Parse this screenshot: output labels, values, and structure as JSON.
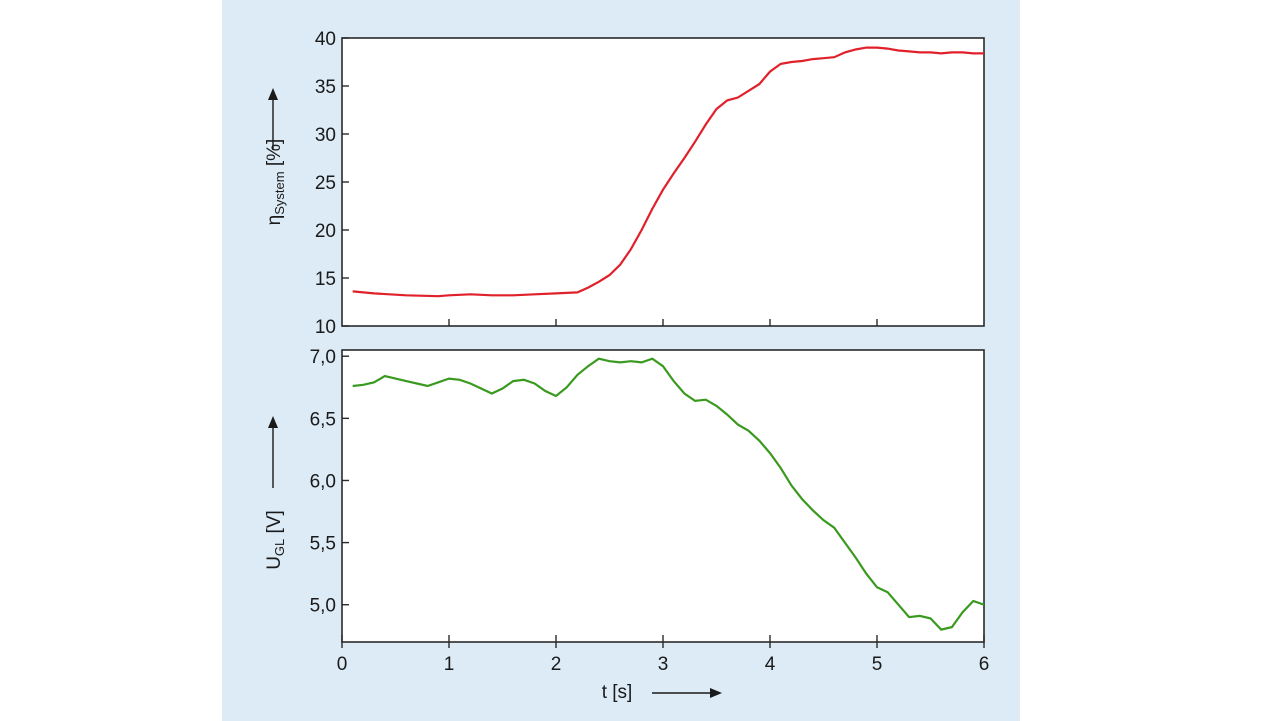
{
  "chart_data": [
    {
      "type": "line",
      "ylabel_main": "η",
      "ylabel_sub": "System",
      "ylabel_unit": " [%]",
      "ylim": [
        10,
        40
      ],
      "xlim": [
        0,
        6
      ],
      "yticks": [
        10,
        15,
        20,
        25,
        30,
        35,
        40
      ],
      "ytick_labels": [
        "10",
        "15",
        "20",
        "25",
        "30",
        "35",
        "40"
      ],
      "xticks": [
        1,
        2,
        3,
        4,
        5
      ],
      "grid": false,
      "color": "#e0202a",
      "series": [
        {
          "x": [
            0.1,
            0.3,
            0.6,
            0.9,
            1.0,
            1.2,
            1.4,
            1.6,
            1.8,
            2.0,
            2.2,
            2.3,
            2.4,
            2.5,
            2.6,
            2.7,
            2.8,
            2.9,
            3.0,
            3.1,
            3.2,
            3.3,
            3.4,
            3.5,
            3.6,
            3.7,
            3.8,
            3.9,
            4.0,
            4.1,
            4.2,
            4.3,
            4.4,
            4.5,
            4.6,
            4.7,
            4.8,
            4.9,
            5.0,
            5.1,
            5.2,
            5.3,
            5.4,
            5.5,
            5.6,
            5.7,
            5.8,
            5.9,
            6.0
          ],
          "values": [
            13.6,
            13.4,
            13.2,
            13.1,
            13.2,
            13.3,
            13.2,
            13.2,
            13.3,
            13.4,
            13.5,
            14.0,
            14.6,
            15.3,
            16.4,
            18.0,
            20.0,
            22.2,
            24.2,
            25.9,
            27.5,
            29.2,
            31.0,
            32.6,
            33.5,
            33.8,
            34.5,
            35.2,
            36.5,
            37.3,
            37.5,
            37.6,
            37.8,
            37.9,
            38.0,
            38.5,
            38.8,
            39.0,
            39.0,
            38.9,
            38.7,
            38.6,
            38.5,
            38.5,
            38.4,
            38.5,
            38.5,
            38.4,
            38.4
          ]
        }
      ]
    },
    {
      "type": "line",
      "ylabel_main": "U",
      "ylabel_sub": "GL",
      "ylabel_unit": " [V]",
      "xlabel": "t [s]",
      "ylim": [
        4.7,
        7.05
      ],
      "xlim": [
        0,
        6
      ],
      "yticks": [
        5.0,
        5.5,
        6.0,
        6.5,
        7.0
      ],
      "ytick_labels": [
        "5,0",
        "5,5",
        "6,0",
        "6,5",
        "7,0"
      ],
      "xticks": [
        0,
        1,
        2,
        3,
        4,
        5,
        6
      ],
      "xtick_labels": [
        "0",
        "1",
        "2",
        "3",
        "4",
        "5",
        "6"
      ],
      "grid": false,
      "color": "#3a9a20",
      "series": [
        {
          "x": [
            0.1,
            0.2,
            0.3,
            0.4,
            0.5,
            0.6,
            0.7,
            0.8,
            0.9,
            1.0,
            1.1,
            1.2,
            1.3,
            1.4,
            1.5,
            1.6,
            1.7,
            1.8,
            1.9,
            2.0,
            2.1,
            2.2,
            2.3,
            2.4,
            2.5,
            2.6,
            2.7,
            2.8,
            2.9,
            3.0,
            3.1,
            3.2,
            3.3,
            3.4,
            3.5,
            3.6,
            3.7,
            3.8,
            3.9,
            4.0,
            4.1,
            4.2,
            4.3,
            4.4,
            4.5,
            4.6,
            4.7,
            4.8,
            4.9,
            5.0,
            5.1,
            5.2,
            5.3,
            5.4,
            5.5,
            5.6,
            5.7,
            5.8,
            5.9,
            6.0
          ],
          "values": [
            6.76,
            6.77,
            6.79,
            6.84,
            6.82,
            6.8,
            6.78,
            6.76,
            6.79,
            6.82,
            6.81,
            6.78,
            6.74,
            6.7,
            6.74,
            6.8,
            6.81,
            6.78,
            6.72,
            6.68,
            6.75,
            6.85,
            6.92,
            6.98,
            6.96,
            6.95,
            6.96,
            6.95,
            6.98,
            6.92,
            6.8,
            6.7,
            6.64,
            6.65,
            6.6,
            6.53,
            6.45,
            6.4,
            6.32,
            6.22,
            6.1,
            5.96,
            5.85,
            5.76,
            5.68,
            5.62,
            5.5,
            5.38,
            5.25,
            5.14,
            5.1,
            5.0,
            4.9,
            4.91,
            4.89,
            4.8,
            4.82,
            4.94,
            5.03,
            5.0
          ]
        }
      ]
    }
  ]
}
